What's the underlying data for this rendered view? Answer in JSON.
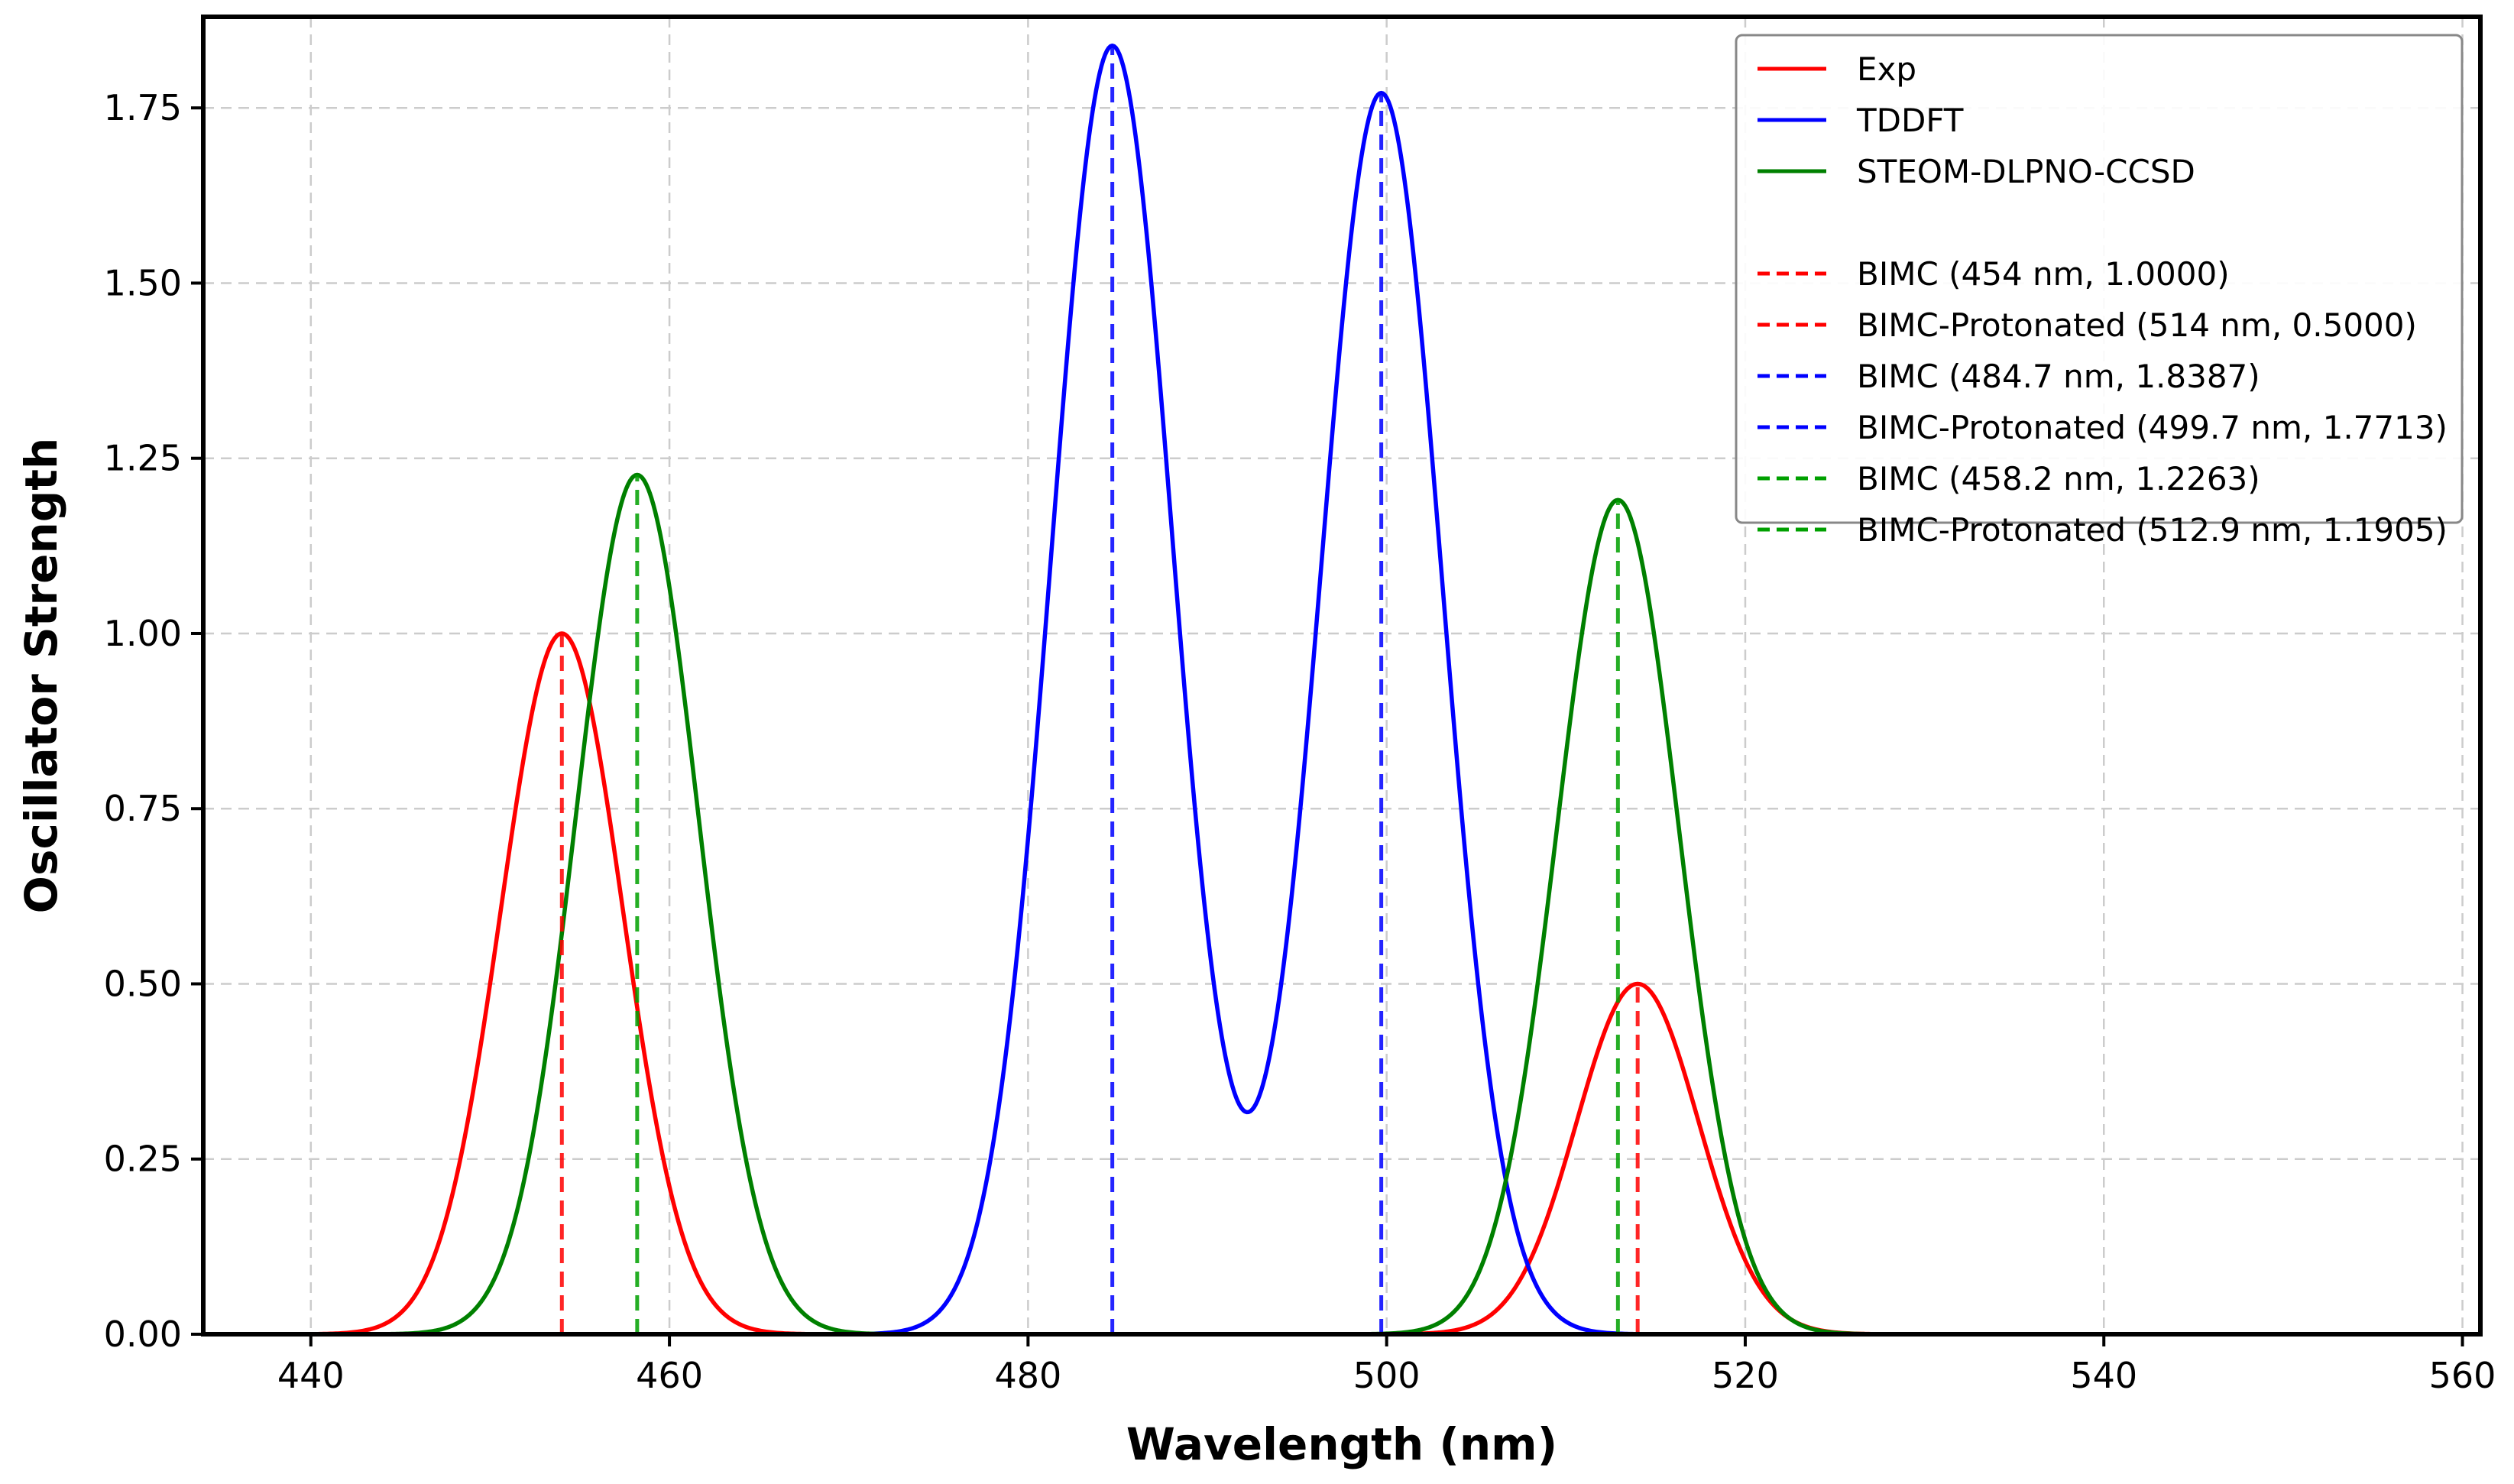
{
  "chart_data": {
    "type": "line",
    "title": "",
    "xlabel": "Wavelength (nm)",
    "ylabel": "Oscillator Strength",
    "xlim": [
      434,
      561
    ],
    "ylim": [
      0,
      1.88
    ],
    "grid": true,
    "legend_position": "top-right",
    "x_ticks": [
      {
        "value": 440,
        "label": "440"
      },
      {
        "value": 460,
        "label": "460"
      },
      {
        "value": 480,
        "label": "480"
      },
      {
        "value": 500,
        "label": "500"
      },
      {
        "value": 520,
        "label": "520"
      },
      {
        "value": 540,
        "label": "540"
      },
      {
        "value": 560,
        "label": "560"
      }
    ],
    "y_ticks": [
      {
        "value": 0.0,
        "label": "0.00"
      },
      {
        "value": 0.25,
        "label": "0.25"
      },
      {
        "value": 0.5,
        "label": "0.50"
      },
      {
        "value": 0.75,
        "label": "0.75"
      },
      {
        "value": 1.0,
        "label": "1.00"
      },
      {
        "value": 1.25,
        "label": "1.25"
      },
      {
        "value": 1.5,
        "label": "1.50"
      },
      {
        "value": 1.75,
        "label": "1.75"
      }
    ],
    "curve_x_range": [
      440,
      560
    ],
    "gaussian_sigma_nm": 3.4,
    "series": [
      {
        "name": "Exp",
        "color": "#ff0000",
        "peaks": [
          {
            "x": 454,
            "y": 1.0
          },
          {
            "x": 514,
            "y": 0.5
          }
        ]
      },
      {
        "name": "TDDFT",
        "color": "#0000ff",
        "peaks": [
          {
            "x": 484.7,
            "y": 1.8387
          },
          {
            "x": 499.7,
            "y": 1.7713
          }
        ]
      },
      {
        "name": "STEOM-DLPNO-CCSD",
        "color": "#008000",
        "peaks": [
          {
            "x": 458.2,
            "y": 1.2263
          },
          {
            "x": 512.9,
            "y": 1.1905
          }
        ]
      }
    ],
    "sticks": [
      {
        "label": "BIMC (454 nm, 1.0000)",
        "x": 454,
        "y": 1.0,
        "color": "#ff0000"
      },
      {
        "label": "BIMC-Protonated (514 nm, 0.5000)",
        "x": 514,
        "y": 0.5,
        "color": "#ff0000"
      },
      {
        "label": "BIMC (484.7 nm, 1.8387)",
        "x": 484.7,
        "y": 1.8387,
        "color": "#0000ff"
      },
      {
        "label": "BIMC-Protonated (499.7 nm, 1.7713)",
        "x": 499.7,
        "y": 1.7713,
        "color": "#0000ff"
      },
      {
        "label": "BIMC (458.2 nm, 1.2263)",
        "x": 458.2,
        "y": 1.2263,
        "color": "#00a000"
      },
      {
        "label": "BIMC-Protonated (512.9 nm, 1.1905)",
        "x": 512.9,
        "y": 1.1905,
        "color": "#00a000"
      }
    ]
  }
}
